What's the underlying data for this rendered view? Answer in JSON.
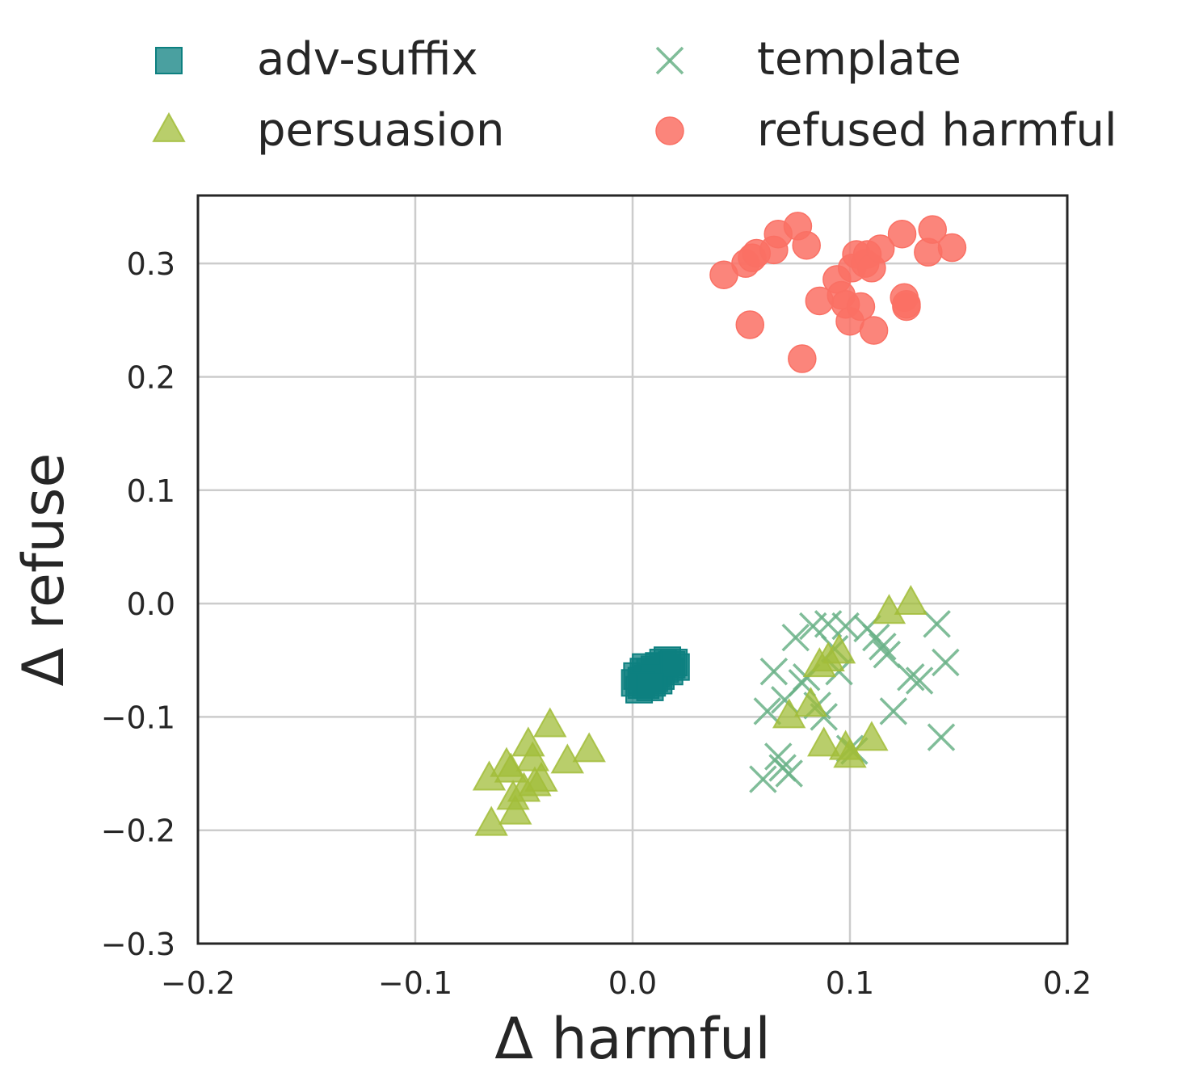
{
  "chart_data": {
    "type": "scatter",
    "title": "",
    "xlabel": "Δ harmful",
    "ylabel": "Δ refuse",
    "xlim": [
      -0.2,
      0.2
    ],
    "ylim": [
      -0.3,
      0.36
    ],
    "xticks": [
      -0.2,
      -0.1,
      0.0,
      0.1,
      0.2
    ],
    "xtick_labels": [
      "−0.2",
      "−0.1",
      "0.0",
      "0.1",
      "0.2"
    ],
    "yticks": [
      -0.3,
      -0.2,
      -0.1,
      0.0,
      0.1,
      0.2,
      0.3
    ],
    "ytick_labels": [
      "−0.3",
      "−0.2",
      "−0.1",
      "0.0",
      "0.1",
      "0.2",
      "0.3"
    ],
    "grid": true,
    "legend_placement": "top, two columns, outside axes",
    "series": [
      {
        "name": "adv-suffix",
        "marker": "square",
        "color": "#0d8080",
        "points": [
          [
            0.002,
            -0.064
          ],
          [
            0.004,
            -0.068
          ],
          [
            0.006,
            -0.072
          ],
          [
            0.003,
            -0.076
          ],
          [
            0.008,
            -0.06
          ],
          [
            0.01,
            -0.058
          ],
          [
            0.012,
            -0.055
          ],
          [
            0.014,
            -0.052
          ],
          [
            0.016,
            -0.05
          ],
          [
            0.018,
            -0.054
          ],
          [
            0.02,
            -0.056
          ],
          [
            0.007,
            -0.066
          ],
          [
            0.009,
            -0.07
          ],
          [
            0.011,
            -0.062
          ],
          [
            0.013,
            -0.064
          ],
          [
            0.015,
            -0.058
          ],
          [
            0.005,
            -0.06
          ],
          [
            0.001,
            -0.07
          ],
          [
            0.017,
            -0.06
          ],
          [
            0.012,
            -0.068
          ],
          [
            0.006,
            -0.056
          ],
          [
            0.01,
            -0.066
          ],
          [
            0.004,
            -0.072
          ],
          [
            0.019,
            -0.052
          ],
          [
            0.008,
            -0.074
          ]
        ]
      },
      {
        "name": "template",
        "marker": "x",
        "color": "#6ab187",
        "points": [
          [
            0.06,
            -0.155
          ],
          [
            0.065,
            -0.06
          ],
          [
            0.067,
            -0.135
          ],
          [
            0.069,
            -0.145
          ],
          [
            0.072,
            -0.15
          ],
          [
            0.075,
            -0.03
          ],
          [
            0.078,
            -0.07
          ],
          [
            0.08,
            -0.065
          ],
          [
            0.083,
            -0.02
          ],
          [
            0.085,
            -0.09
          ],
          [
            0.088,
            -0.1
          ],
          [
            0.09,
            -0.018
          ],
          [
            0.093,
            -0.04
          ],
          [
            0.095,
            -0.06
          ],
          [
            0.098,
            -0.02
          ],
          [
            0.1,
            -0.128
          ],
          [
            0.102,
            -0.13
          ],
          [
            0.108,
            -0.022
          ],
          [
            0.112,
            -0.03
          ],
          [
            0.115,
            -0.038
          ],
          [
            0.117,
            -0.045
          ],
          [
            0.12,
            -0.095
          ],
          [
            0.128,
            -0.065
          ],
          [
            0.132,
            -0.068
          ],
          [
            0.14,
            -0.018
          ],
          [
            0.142,
            -0.118
          ],
          [
            0.144,
            -0.052
          ],
          [
            0.062,
            -0.095
          ],
          [
            0.07,
            -0.085
          ]
        ]
      },
      {
        "name": "persuasion",
        "marker": "triangle",
        "color": "#a2bd3a",
        "points": [
          [
            -0.066,
            -0.155
          ],
          [
            -0.065,
            -0.195
          ],
          [
            -0.058,
            -0.143
          ],
          [
            -0.056,
            -0.148
          ],
          [
            -0.055,
            -0.172
          ],
          [
            -0.054,
            -0.185
          ],
          [
            -0.05,
            -0.165
          ],
          [
            -0.048,
            -0.125
          ],
          [
            -0.046,
            -0.138
          ],
          [
            -0.045,
            -0.16
          ],
          [
            -0.042,
            -0.156
          ],
          [
            -0.038,
            -0.108
          ],
          [
            -0.03,
            -0.14
          ],
          [
            -0.02,
            -0.13
          ],
          [
            0.072,
            -0.1
          ],
          [
            0.082,
            -0.09
          ],
          [
            0.088,
            -0.125
          ],
          [
            0.098,
            -0.128
          ],
          [
            0.11,
            -0.12
          ],
          [
            0.09,
            -0.05
          ],
          [
            0.095,
            -0.043
          ],
          [
            0.118,
            -0.008
          ],
          [
            0.128,
            0.0
          ],
          [
            0.086,
            -0.055
          ],
          [
            0.1,
            -0.135
          ]
        ]
      },
      {
        "name": "refused harmful",
        "marker": "circle",
        "color": "#fa7064",
        "points": [
          [
            0.042,
            0.29
          ],
          [
            0.052,
            0.3
          ],
          [
            0.054,
            0.246
          ],
          [
            0.055,
            0.305
          ],
          [
            0.057,
            0.309
          ],
          [
            0.065,
            0.312
          ],
          [
            0.067,
            0.326
          ],
          [
            0.076,
            0.333
          ],
          [
            0.078,
            0.216
          ],
          [
            0.08,
            0.316
          ],
          [
            0.086,
            0.267
          ],
          [
            0.094,
            0.286
          ],
          [
            0.096,
            0.272
          ],
          [
            0.098,
            0.264
          ],
          [
            0.1,
            0.249
          ],
          [
            0.101,
            0.296
          ],
          [
            0.103,
            0.308
          ],
          [
            0.105,
            0.262
          ],
          [
            0.107,
            0.3
          ],
          [
            0.108,
            0.308
          ],
          [
            0.11,
            0.296
          ],
          [
            0.111,
            0.241
          ],
          [
            0.114,
            0.313
          ],
          [
            0.124,
            0.326
          ],
          [
            0.125,
            0.27
          ],
          [
            0.126,
            0.262
          ],
          [
            0.126,
            0.264
          ],
          [
            0.136,
            0.31
          ],
          [
            0.138,
            0.33
          ],
          [
            0.147,
            0.314
          ]
        ]
      }
    ],
    "legend": [
      {
        "label": "adv-suffix",
        "marker": "square",
        "color": "#0d8080"
      },
      {
        "label": "template",
        "marker": "x",
        "color": "#6ab187"
      },
      {
        "label": "persuasion",
        "marker": "triangle",
        "color": "#a2bd3a"
      },
      {
        "label": "refused harmful",
        "marker": "circle",
        "color": "#fa7064"
      }
    ]
  }
}
